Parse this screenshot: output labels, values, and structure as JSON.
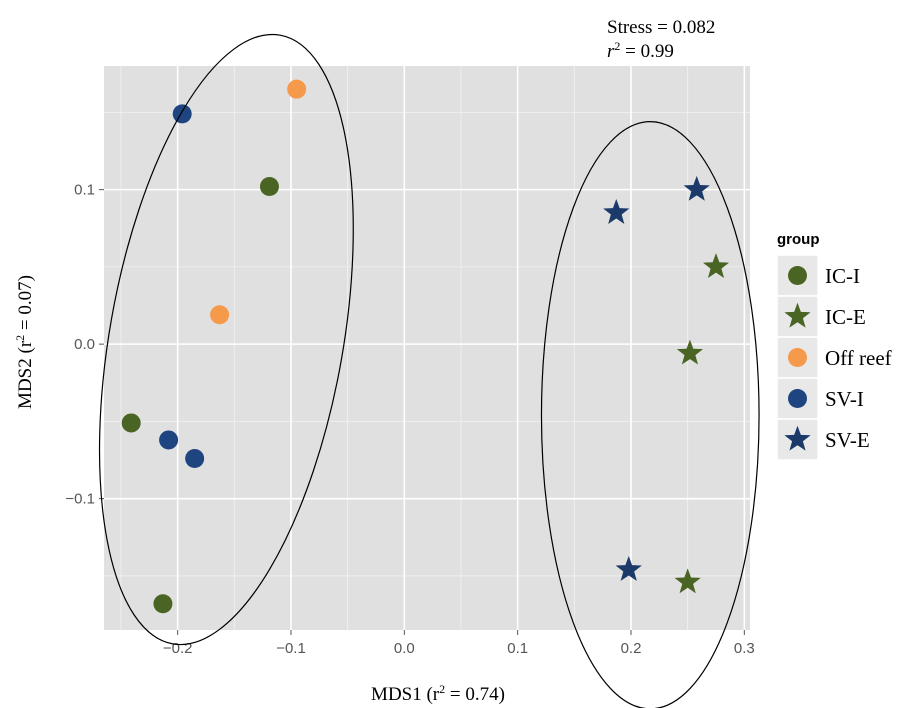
{
  "chart_data": {
    "type": "scatter",
    "xlabel": {
      "main": "MDS1 (r",
      "sup": "2",
      "tail": " = 0.74)"
    },
    "ylabel": {
      "main": "MDS2 (r",
      "sup": "2",
      "tail": " = 0.07)"
    },
    "xlim": [
      -0.265,
      0.305
    ],
    "ylim": [
      -0.185,
      0.18
    ],
    "x_ticks": [
      -0.2,
      -0.1,
      0.0,
      0.1,
      0.2,
      0.3
    ],
    "x_tick_labels": [
      "−0.2",
      "−0.1",
      "0.0",
      "0.1",
      "0.2",
      "0.3"
    ],
    "y_ticks": [
      -0.1,
      0.0,
      0.1
    ],
    "y_tick_labels": [
      "−0.1",
      "0.0",
      "0.1"
    ],
    "grid": true,
    "background": "#e0e0e0",
    "annotations": {
      "stress": "Stress = 0.082",
      "r2_main": "r",
      "r2_sup": "2",
      "r2_tail": " = 0.99"
    },
    "legend": {
      "title": "group",
      "placement": "right",
      "entries": [
        {
          "label": "IC-I",
          "shape": "circle",
          "color": "#4a6423"
        },
        {
          "label": "IC-E",
          "shape": "star",
          "color": "#4a6423"
        },
        {
          "label": "Off reef",
          "shape": "circle",
          "color": "#f5994a"
        },
        {
          "label": "SV-I",
          "shape": "circle",
          "color": "#1f4580"
        },
        {
          "label": "SV-E",
          "shape": "star",
          "color": "#1b3a6a"
        }
      ]
    },
    "series": [
      {
        "name": "IC-I",
        "shape": "circle",
        "color": "#4a6423",
        "points": [
          [
            -0.119,
            0.102
          ],
          [
            -0.241,
            -0.051
          ],
          [
            -0.213,
            -0.168
          ]
        ]
      },
      {
        "name": "IC-E",
        "shape": "star",
        "color": "#4a6423",
        "points": [
          [
            0.275,
            0.05
          ],
          [
            0.252,
            -0.006
          ],
          [
            0.25,
            -0.154
          ]
        ]
      },
      {
        "name": "Off reef",
        "shape": "circle",
        "color": "#f5994a",
        "points": [
          [
            -0.095,
            0.165
          ],
          [
            -0.163,
            0.019
          ]
        ]
      },
      {
        "name": "SV-I",
        "shape": "circle",
        "color": "#1f4580",
        "points": [
          [
            -0.196,
            0.149
          ],
          [
            -0.208,
            -0.062
          ],
          [
            -0.185,
            -0.074
          ]
        ]
      },
      {
        "name": "SV-E",
        "shape": "star",
        "color": "#1b3a6a",
        "points": [
          [
            0.258,
            0.1
          ],
          [
            0.187,
            0.085
          ],
          [
            0.198,
            -0.146
          ]
        ]
      }
    ],
    "ellipses": [
      {
        "name": "inshore-ellipse",
        "cx": -0.157,
        "cy": 0.003,
        "rx_data": 0.103,
        "ry_data": 0.2,
        "rotate": 10
      },
      {
        "name": "offshore-ellipse",
        "cx": 0.217,
        "cy": -0.046,
        "rx_data": 0.096,
        "ry_data": 0.19,
        "rotate": 0
      }
    ]
  }
}
